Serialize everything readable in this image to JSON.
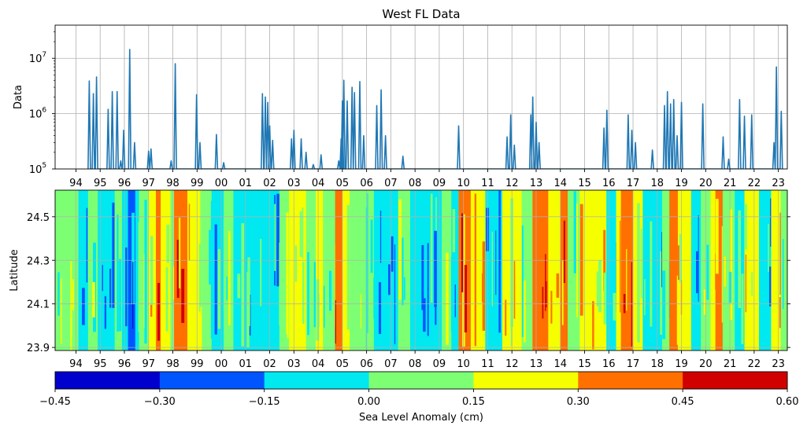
{
  "figure": {
    "title": "West FL Data"
  },
  "chart_data": [
    {
      "type": "line",
      "title": "West FL Data",
      "ylabel": "Data",
      "xlabel": "",
      "yscale": "log",
      "ylim": [
        100000,
        39800000
      ],
      "xlim": [
        1993.14,
        2023.37
      ],
      "grid": true,
      "color": "#1f77b4",
      "x_tick_labels": [
        "94",
        "95",
        "96",
        "97",
        "98",
        "99",
        "00",
        "01",
        "02",
        "03",
        "04",
        "05",
        "06",
        "07",
        "08",
        "09",
        "10",
        "11",
        "12",
        "13",
        "14",
        "15",
        "16",
        "17",
        "18",
        "19",
        "20",
        "21",
        "22",
        "23"
      ],
      "y_ticks": [
        {
          "value": 100000,
          "base": "10",
          "exp": "5"
        },
        {
          "value": 1000000,
          "base": "10",
          "exp": "6"
        },
        {
          "value": 10000000,
          "base": "10",
          "exp": "7"
        }
      ],
      "baseline": 100000,
      "series": [
        {
          "peaks": [
            [
              1994.55,
              3900000
            ],
            [
              1994.72,
              2300000
            ],
            [
              1994.85,
              4600000
            ],
            [
              1995.33,
              1200000
            ],
            [
              1995.5,
              2500000
            ],
            [
              1995.7,
              2500000
            ],
            [
              1995.85,
              140000
            ],
            [
              1995.97,
              500000
            ],
            [
              1996.22,
              14500000
            ],
            [
              1996.42,
              300000
            ],
            [
              1997.0,
              210000
            ],
            [
              1997.1,
              230000
            ],
            [
              1997.93,
              140000
            ],
            [
              1998.1,
              8000000
            ],
            [
              1998.98,
              2200000
            ],
            [
              1999.12,
              300000
            ],
            [
              1999.8,
              420000
            ],
            [
              2000.1,
              130000
            ],
            [
              2001.7,
              2300000
            ],
            [
              2001.82,
              2000000
            ],
            [
              2001.92,
              1600000
            ],
            [
              2002.0,
              600000
            ],
            [
              2002.12,
              330000
            ],
            [
              2002.9,
              350000
            ],
            [
              2003.0,
              500000
            ],
            [
              2003.3,
              350000
            ],
            [
              2003.5,
              200000
            ],
            [
              2003.8,
              120000
            ],
            [
              2004.12,
              180000
            ],
            [
              2004.85,
              140000
            ],
            [
              2004.95,
              350000
            ],
            [
              2005.0,
              1700000
            ],
            [
              2005.06,
              4000000
            ],
            [
              2005.2,
              1700000
            ],
            [
              2005.4,
              3000000
            ],
            [
              2005.5,
              2400000
            ],
            [
              2005.72,
              3800000
            ],
            [
              2005.88,
              400000
            ],
            [
              2006.42,
              1400000
            ],
            [
              2006.6,
              2700000
            ],
            [
              2006.78,
              400000
            ],
            [
              2007.5,
              170000
            ],
            [
              2009.8,
              600000
            ],
            [
              2011.8,
              380000
            ],
            [
              2011.95,
              950000
            ],
            [
              2012.1,
              270000
            ],
            [
              2012.78,
              950000
            ],
            [
              2012.86,
              2000000
            ],
            [
              2013.0,
              700000
            ],
            [
              2013.12,
              300000
            ],
            [
              2015.8,
              550000
            ],
            [
              2015.92,
              1150000
            ],
            [
              2016.8,
              950000
            ],
            [
              2016.95,
              500000
            ],
            [
              2017.1,
              300000
            ],
            [
              2017.8,
              220000
            ],
            [
              2018.3,
              1400000
            ],
            [
              2018.42,
              2500000
            ],
            [
              2018.55,
              1500000
            ],
            [
              2018.68,
              1800000
            ],
            [
              2018.82,
              400000
            ],
            [
              2019.0,
              1600000
            ],
            [
              2019.88,
              1500000
            ],
            [
              2020.72,
              380000
            ],
            [
              2020.95,
              150000
            ],
            [
              2021.4,
              1800000
            ],
            [
              2021.6,
              900000
            ],
            [
              2021.9,
              950000
            ],
            [
              2022.82,
              300000
            ],
            [
              2022.92,
              7000000
            ],
            [
              2023.12,
              1100000
            ]
          ]
        }
      ]
    },
    {
      "type": "heatmap",
      "ylabel": "Latitude",
      "xlabel": "",
      "xlim": [
        1993.14,
        2023.37
      ],
      "ylim": [
        23.886,
        24.622
      ],
      "grid": true,
      "x_tick_labels": [
        "94",
        "95",
        "96",
        "97",
        "98",
        "99",
        "00",
        "01",
        "02",
        "03",
        "04",
        "05",
        "06",
        "07",
        "08",
        "09",
        "10",
        "11",
        "12",
        "13",
        "14",
        "15",
        "16",
        "17",
        "18",
        "19",
        "20",
        "21",
        "22",
        "23"
      ],
      "y_tick_labels": [
        "24.5",
        "24.3",
        "24.1",
        "23.9"
      ],
      "y_tick_values": [
        24.5,
        24.3,
        24.1,
        23.9
      ],
      "segments": [
        [
          1993.14,
          1994.1,
          0.08
        ],
        [
          1994.1,
          1994.5,
          -0.05
        ],
        [
          1994.5,
          1994.9,
          0.08
        ],
        [
          1994.9,
          1995.6,
          -0.08
        ],
        [
          1995.6,
          1995.9,
          0.05
        ],
        [
          1995.9,
          1996.15,
          -0.05
        ],
        [
          1996.15,
          1996.45,
          -0.28
        ],
        [
          1996.45,
          1996.6,
          -0.1
        ],
        [
          1996.6,
          1997.0,
          0.08
        ],
        [
          1997.0,
          1997.3,
          0.2
        ],
        [
          1997.3,
          1997.5,
          0.35
        ],
        [
          1997.5,
          1997.9,
          0.2
        ],
        [
          1997.9,
          1998.05,
          0.08
        ],
        [
          1998.05,
          1998.6,
          0.36
        ],
        [
          1998.6,
          1999.2,
          0.2
        ],
        [
          1999.2,
          1999.6,
          0.08
        ],
        [
          1999.6,
          2000.1,
          -0.05
        ],
        [
          2000.1,
          2000.5,
          0.08
        ],
        [
          2000.5,
          2002.4,
          -0.06
        ],
        [
          2002.4,
          2002.8,
          0.08
        ],
        [
          2002.8,
          2003.5,
          0.2
        ],
        [
          2003.5,
          2003.9,
          0.08
        ],
        [
          2003.9,
          2004.2,
          0.2
        ],
        [
          2004.2,
          2004.7,
          0.08
        ],
        [
          2004.7,
          2005.0,
          0.36
        ],
        [
          2005.0,
          2005.3,
          0.2
        ],
        [
          2005.3,
          2006.3,
          0.08
        ],
        [
          2006.3,
          2007.3,
          -0.06
        ],
        [
          2007.3,
          2007.8,
          0.08
        ],
        [
          2007.8,
          2009.1,
          -0.06
        ],
        [
          2009.1,
          2009.5,
          0.08
        ],
        [
          2009.5,
          2009.8,
          -0.06
        ],
        [
          2009.8,
          2010.3,
          0.37
        ],
        [
          2010.3,
          2010.9,
          0.2
        ],
        [
          2010.9,
          2011.6,
          -0.06
        ],
        [
          2011.6,
          2012.4,
          0.2
        ],
        [
          2012.4,
          2012.85,
          0.08
        ],
        [
          2012.85,
          2013.5,
          0.37
        ],
        [
          2013.5,
          2014.0,
          0.2
        ],
        [
          2014.0,
          2014.3,
          0.36
        ],
        [
          2014.3,
          2014.8,
          0.08
        ],
        [
          2014.8,
          2015.9,
          0.2
        ],
        [
          2015.9,
          2016.3,
          -0.06
        ],
        [
          2016.3,
          2016.5,
          0.2
        ],
        [
          2016.5,
          2017.0,
          0.38
        ],
        [
          2017.0,
          2017.4,
          0.2
        ],
        [
          2017.4,
          2018.2,
          -0.06
        ],
        [
          2018.2,
          2018.5,
          0.08
        ],
        [
          2018.5,
          2018.85,
          0.38
        ],
        [
          2018.85,
          2019.4,
          0.2
        ],
        [
          2019.4,
          2019.8,
          -0.06
        ],
        [
          2019.8,
          2020.2,
          0.08
        ],
        [
          2020.2,
          2020.4,
          0.2
        ],
        [
          2020.4,
          2020.7,
          0.38
        ],
        [
          2020.7,
          2021.2,
          0.08
        ],
        [
          2021.2,
          2021.6,
          -0.06
        ],
        [
          2021.6,
          2022.2,
          0.2
        ],
        [
          2022.2,
          2022.7,
          -0.06
        ],
        [
          2022.7,
          2023.1,
          0.2
        ],
        [
          2023.1,
          2023.37,
          0.08
        ]
      ],
      "colorbar": {
        "label": "Sea Level Anomaly (cm)",
        "boundaries": [
          -0.45,
          -0.3,
          -0.15,
          0.0,
          0.15,
          0.3,
          0.45,
          0.6
        ],
        "tick_labels": [
          "−0.45",
          "−0.30",
          "−0.15",
          "0.00",
          "0.15",
          "0.30",
          "0.45",
          "0.60"
        ],
        "colors": [
          "#0000cd",
          "#0055ff",
          "#00e8f0",
          "#7dff74",
          "#f5ff00",
          "#ff7000",
          "#d00000"
        ]
      }
    }
  ]
}
